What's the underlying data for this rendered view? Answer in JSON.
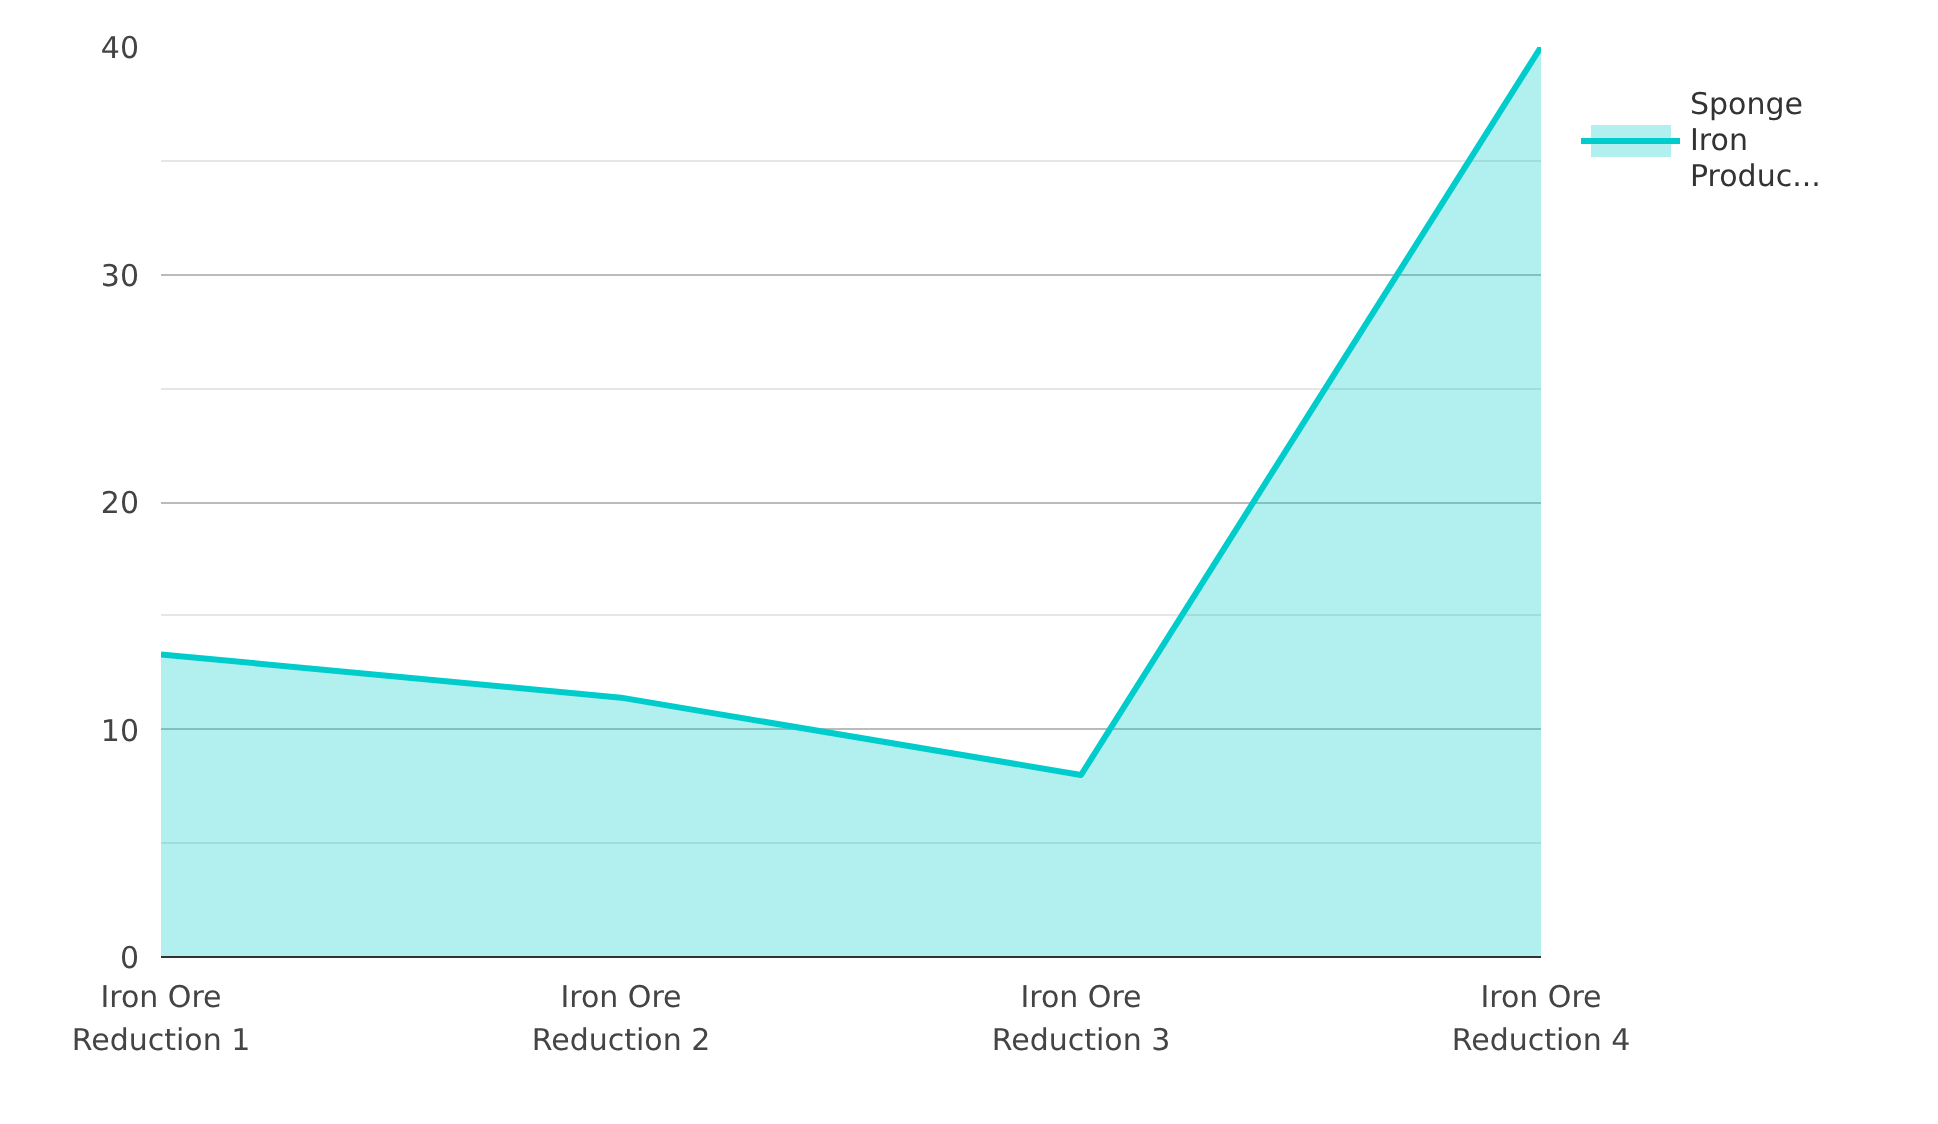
{
  "chart_data": {
    "type": "area",
    "categories": [
      "Iron Ore Reduction 1",
      "Iron Ore Reduction 2",
      "Iron Ore Reduction 3",
      "Iron Ore Reduction 4"
    ],
    "series": [
      {
        "name": "Sponge Iron Produc...",
        "color": "#00cccc",
        "values": [
          13.3,
          11.4,
          8.0,
          40
        ]
      }
    ],
    "ylim": [
      0,
      40
    ],
    "yticks": [
      0,
      10,
      20,
      30,
      40
    ],
    "grid": "y",
    "legend": "right"
  }
}
